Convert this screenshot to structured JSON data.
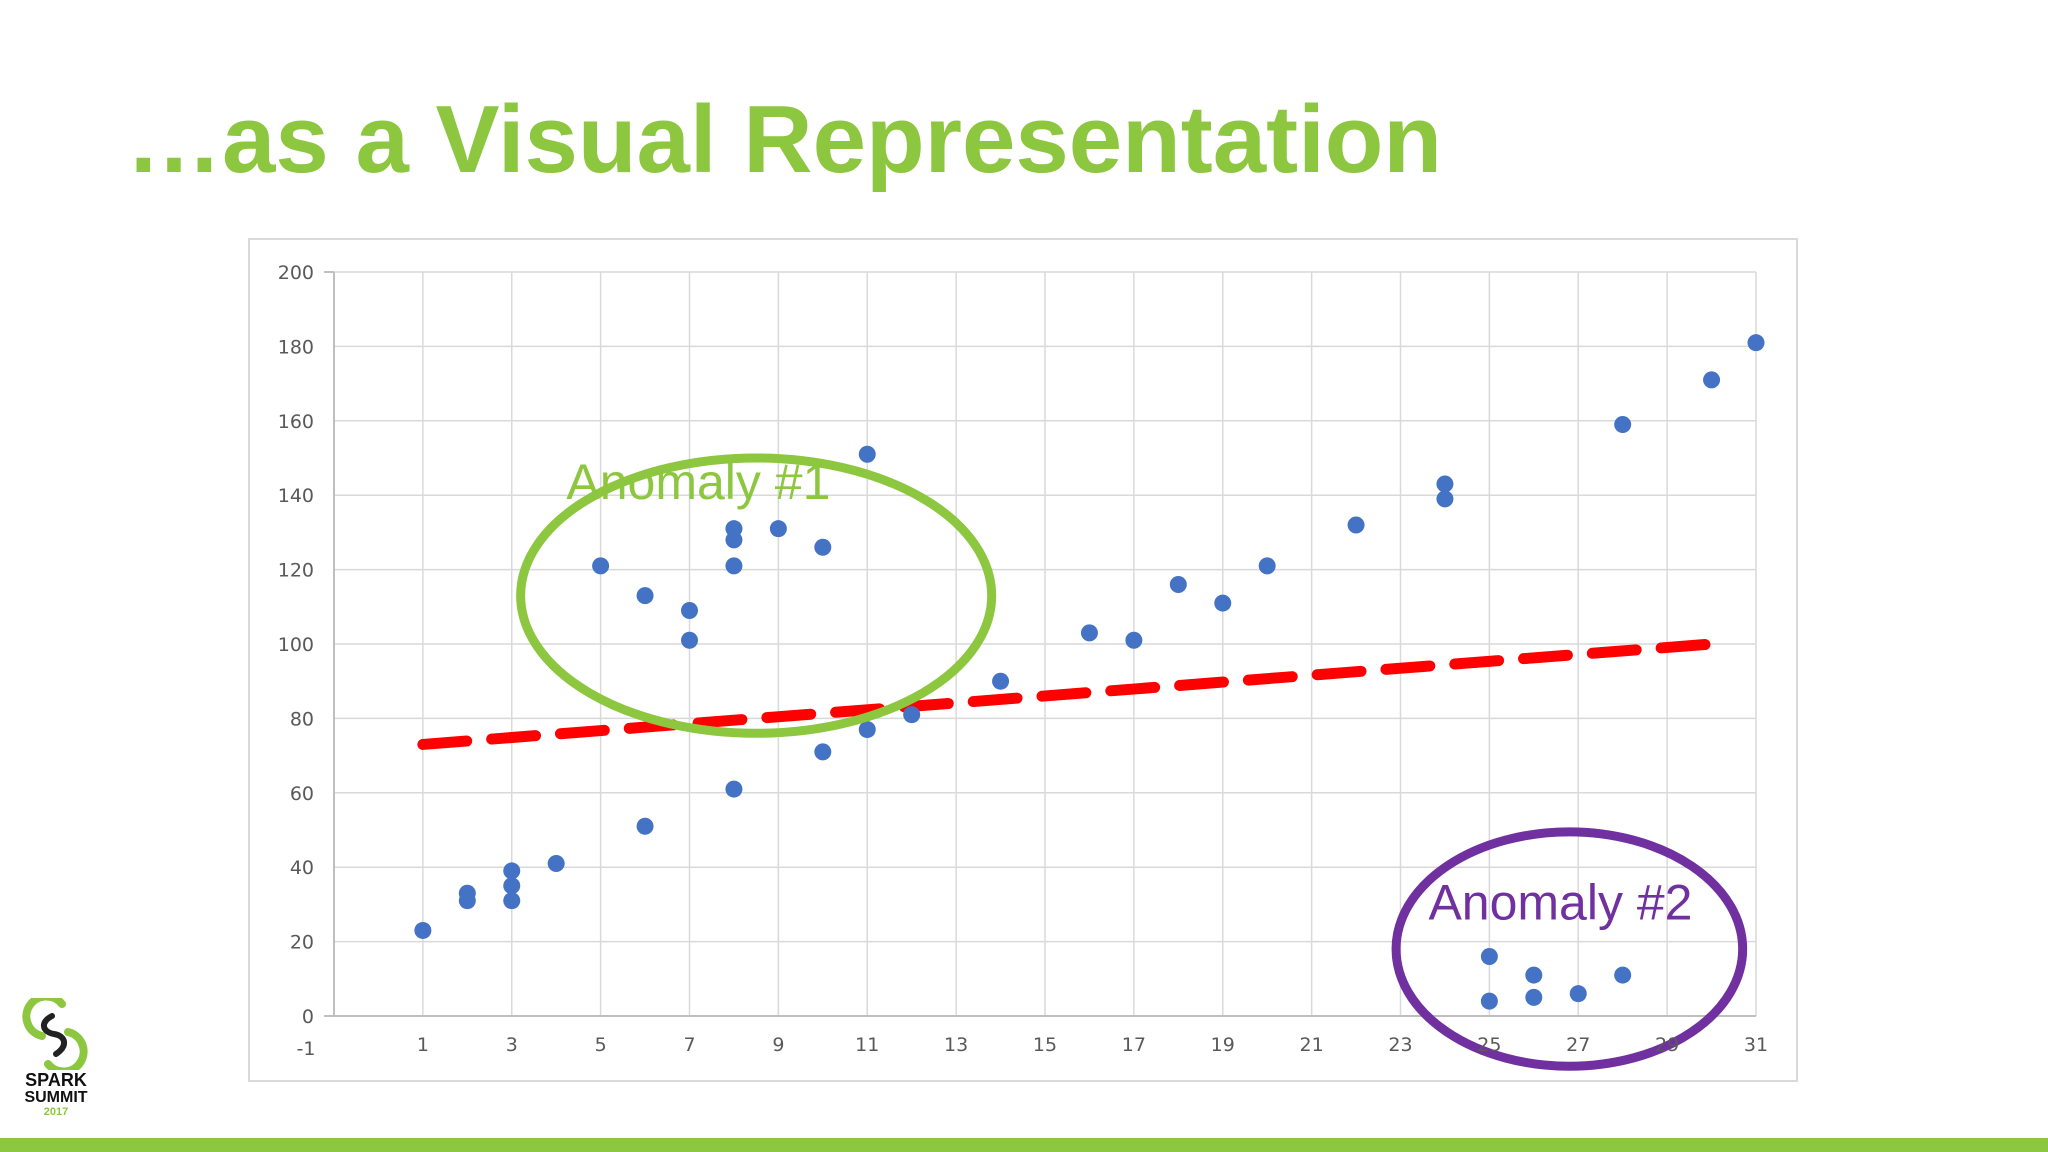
{
  "slide": {
    "title": "…as a Visual Representation",
    "title_color": "#8dc63f",
    "accent_color": "#8dc63f"
  },
  "logo": {
    "line1": "SPARK",
    "line2": "SUMMIT",
    "year": "2017",
    "icon": "spark-summit-logo-icon"
  },
  "chart_data": {
    "type": "scatter",
    "xlim": [
      -1,
      31
    ],
    "ylim": [
      0,
      200
    ],
    "x_ticks": [
      -1,
      1,
      3,
      5,
      7,
      9,
      11,
      13,
      15,
      17,
      19,
      21,
      23,
      25,
      27,
      29,
      31
    ],
    "y_ticks": [
      0,
      20,
      40,
      60,
      80,
      100,
      120,
      140,
      160,
      180,
      200
    ],
    "grid": true,
    "point_color": "#4472c4",
    "points": [
      [
        1,
        23
      ],
      [
        2,
        31
      ],
      [
        2,
        33
      ],
      [
        3,
        31
      ],
      [
        3,
        35
      ],
      [
        3,
        39
      ],
      [
        4,
        41
      ],
      [
        5,
        121
      ],
      [
        6,
        113
      ],
      [
        6,
        51
      ],
      [
        7,
        109
      ],
      [
        7,
        101
      ],
      [
        8,
        131
      ],
      [
        8,
        128
      ],
      [
        8,
        121
      ],
      [
        8,
        61
      ],
      [
        9,
        131
      ],
      [
        10,
        126
      ],
      [
        10,
        71
      ],
      [
        11,
        151
      ],
      [
        11,
        77
      ],
      [
        12,
        81
      ],
      [
        14,
        90
      ],
      [
        16,
        103
      ],
      [
        17,
        101
      ],
      [
        18,
        116
      ],
      [
        19,
        111
      ],
      [
        20,
        121
      ],
      [
        22,
        132
      ],
      [
        24,
        143
      ],
      [
        24,
        139
      ],
      [
        25,
        16
      ],
      [
        25,
        4
      ],
      [
        26,
        11
      ],
      [
        26,
        5
      ],
      [
        27,
        6
      ],
      [
        28,
        159
      ],
      [
        28,
        11
      ],
      [
        30,
        171
      ],
      [
        31,
        181
      ]
    ],
    "trendline": {
      "from": [
        1,
        73
      ],
      "to": [
        30,
        100
      ],
      "color": "#ff0000",
      "style": "dashed"
    },
    "annotations": [
      {
        "text": "Anomaly #1",
        "color": "#8dc63f",
        "center": [
          8.5,
          113
        ],
        "radius": [
          5.3,
          37
        ],
        "label_at": [
          7.2,
          139
        ]
      },
      {
        "text": "Anomaly #2",
        "color": "#7030a0",
        "center": [
          26.8,
          18
        ],
        "radius": [
          3.9,
          31.5
        ],
        "label_at": [
          26.6,
          26
        ]
      }
    ]
  }
}
